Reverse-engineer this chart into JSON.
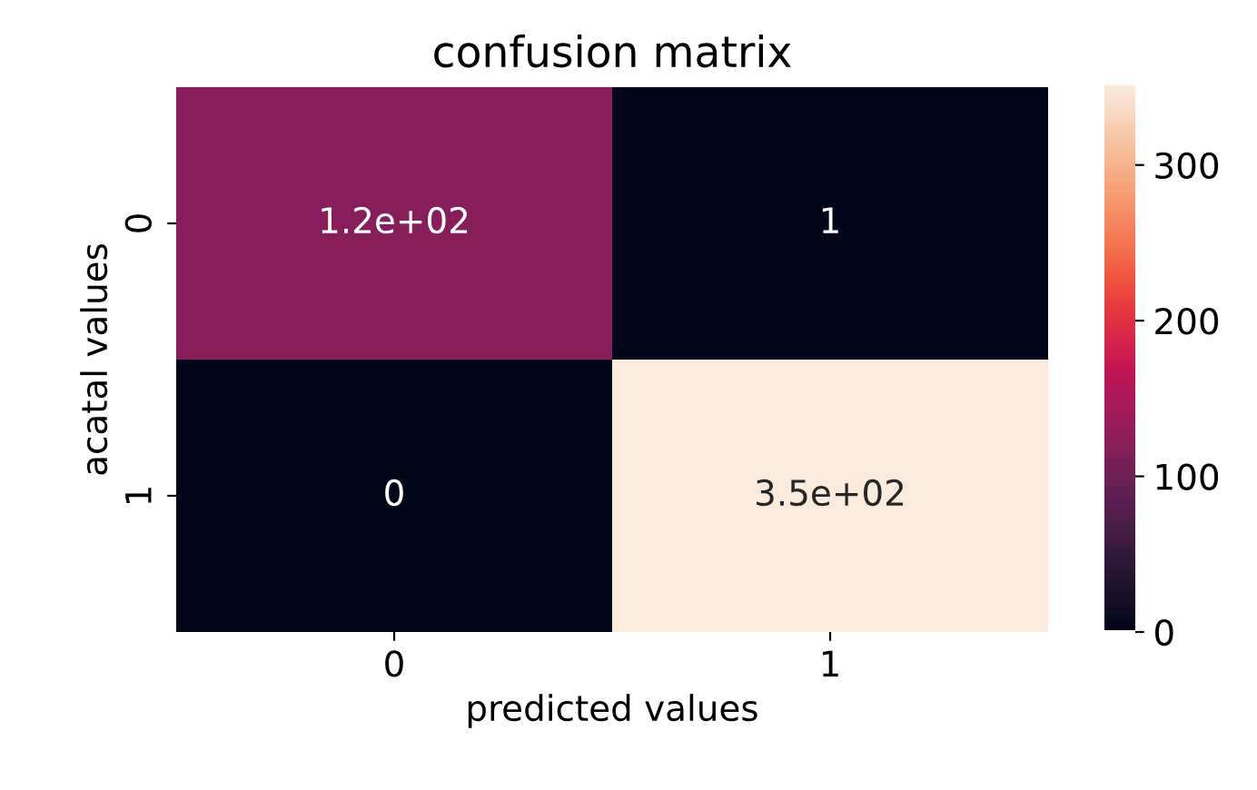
{
  "chart_data": {
    "type": "heatmap",
    "title": "confusion matrix",
    "xlabel": "predicted values",
    "ylabel": "acatal values",
    "categories": [
      "0",
      "1"
    ],
    "y_categories": [
      "0",
      "1"
    ],
    "cells": [
      [
        120,
        1
      ],
      [
        0,
        350
      ]
    ],
    "cell_labels": [
      [
        "1.2e+02",
        "1"
      ],
      [
        "0",
        "3.5e+02"
      ]
    ],
    "clim": [
      0,
      350
    ],
    "cticks": [
      0,
      100,
      200,
      300
    ]
  }
}
